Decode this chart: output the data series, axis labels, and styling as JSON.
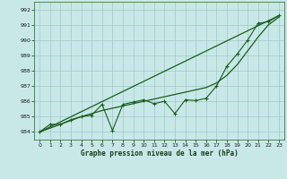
{
  "xlabel": "Graphe pression niveau de la mer (hPa)",
  "xlim": [
    -0.5,
    23.5
  ],
  "ylim": [
    983.5,
    992.5
  ],
  "yticks": [
    984,
    985,
    986,
    987,
    988,
    989,
    990,
    991,
    992
  ],
  "xticks": [
    0,
    1,
    2,
    3,
    4,
    5,
    6,
    7,
    8,
    9,
    10,
    11,
    12,
    13,
    14,
    15,
    16,
    17,
    18,
    19,
    20,
    21,
    22,
    23
  ],
  "bg_color": "#c8e8e8",
  "grid_color": "#a0c8c8",
  "line_color": "#1a5c1a",
  "straight_line": [
    [
      0,
      984.0
    ],
    [
      23,
      991.6
    ]
  ],
  "smooth_line": [
    984.0,
    984.25,
    984.5,
    984.75,
    985.0,
    985.2,
    985.4,
    985.55,
    985.7,
    985.85,
    986.0,
    986.15,
    986.3,
    986.45,
    986.6,
    986.75,
    986.9,
    987.2,
    987.7,
    988.4,
    989.3,
    990.2,
    991.0,
    991.5
  ],
  "zigzag_line": [
    984.0,
    984.5,
    984.5,
    984.8,
    985.0,
    985.1,
    985.8,
    984.1,
    985.8,
    985.95,
    986.1,
    985.85,
    986.0,
    985.2,
    986.1,
    986.05,
    986.2,
    987.0,
    988.3,
    989.1,
    990.0,
    991.1,
    991.2,
    991.6
  ]
}
